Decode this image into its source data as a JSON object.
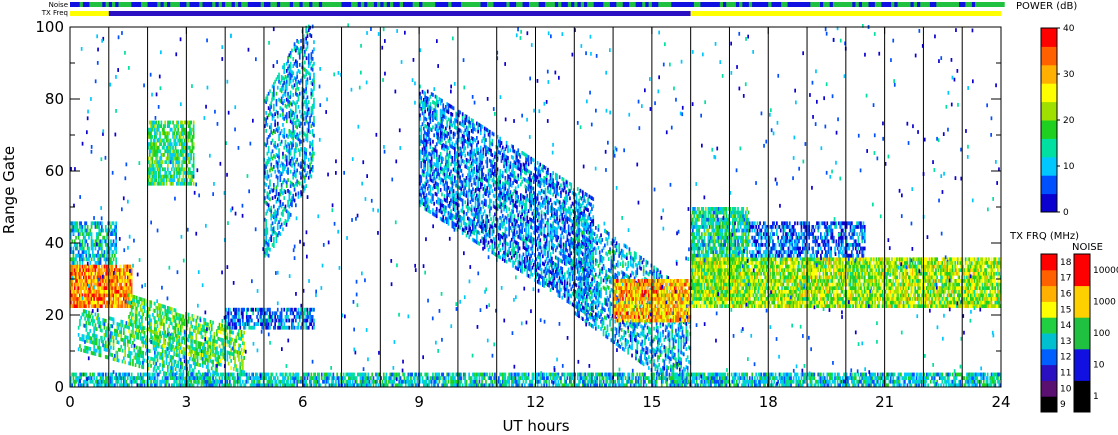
{
  "chart_data": {
    "type": "heatmap",
    "xlabel": "UT hours",
    "ylabel": "Range Gate",
    "xlim": [
      0,
      24
    ],
    "ylim": [
      0,
      100
    ],
    "x_ticks": [
      0,
      3,
      6,
      9,
      12,
      15,
      18,
      21,
      24
    ],
    "y_ticks": [
      0,
      20,
      40,
      60,
      80,
      100
    ],
    "hour_grid": [
      1,
      2,
      3,
      4,
      5,
      6,
      7,
      8,
      9,
      10,
      11,
      12,
      13,
      14,
      15,
      16,
      17,
      18,
      19,
      20,
      21,
      22,
      23
    ],
    "power_colorbar": {
      "title": "POWER (dB)",
      "ticks": [
        0,
        10,
        20,
        30,
        40
      ],
      "range": [
        0,
        40
      ],
      "colors": [
        "#0a00d0",
        "#0050ff",
        "#00c8ff",
        "#00e0a0",
        "#20d020",
        "#a0e000",
        "#ffff00",
        "#ffb000",
        "#ff6000",
        "#ff0000"
      ]
    },
    "txfreq_colorbar": {
      "title": "TX FRQ (MHz)",
      "ticks": [
        "9",
        "10",
        "11",
        "12",
        "13",
        "14",
        "15",
        "16",
        "17",
        "18"
      ],
      "colors": [
        "#000000",
        "#5a1070",
        "#2a10c0",
        "#0060ff",
        "#00c0d0",
        "#20d040",
        "#ffff00",
        "#ffb000",
        "#ff6000",
        "#ff0000"
      ]
    },
    "noise_colorbar": {
      "title": "NOISE",
      "ticks": [
        "1",
        "10",
        "100",
        "1000",
        "10000"
      ],
      "colors": [
        "#000000",
        "#1010e0",
        "#20c040",
        "#ffd000",
        "#ff0000"
      ]
    },
    "top_strips": {
      "noise_label": "Noise",
      "txfreq_label": "TX Freq",
      "noise_segments": [
        {
          "start": 0,
          "end": 3,
          "level": 0.5
        },
        {
          "start": 3,
          "end": 5,
          "level": 0.35
        },
        {
          "start": 5,
          "end": 9,
          "level": 0.6
        },
        {
          "start": 9,
          "end": 12,
          "level": 0.45
        },
        {
          "start": 12,
          "end": 16,
          "level": 0.55
        },
        {
          "start": 16,
          "end": 19,
          "level": 0.4
        },
        {
          "start": 19,
          "end": 24,
          "level": 0.6
        }
      ],
      "txfreq_segments": [
        {
          "start": 0,
          "end": 1,
          "freq": 15
        },
        {
          "start": 1,
          "end": 16,
          "freq": 11
        },
        {
          "start": 16,
          "end": 24,
          "freq": 15
        }
      ]
    },
    "echo_regions": [
      {
        "t0": 0.0,
        "t1": 1.6,
        "g0": 22,
        "g1": 34,
        "power": 32,
        "density": 0.9
      },
      {
        "t0": 0.0,
        "t1": 1.2,
        "g0": 34,
        "g1": 46,
        "power": 12,
        "density": 0.6
      },
      {
        "t0": 0.2,
        "t1": 3.8,
        "g0": 10,
        "g1": 22,
        "power": 14,
        "density": 0.5,
        "slope": -3.0
      },
      {
        "t0": 1.5,
        "t1": 4.5,
        "g0": 14,
        "g1": 26,
        "power": 18,
        "density": 0.55,
        "slope": -3.5
      },
      {
        "t0": 2.0,
        "t1": 3.2,
        "g0": 56,
        "g1": 74,
        "power": 16,
        "density": 0.7
      },
      {
        "t0": 4.0,
        "t1": 6.3,
        "g0": 16,
        "g1": 22,
        "power": 8,
        "density": 0.6
      },
      {
        "t0": 5.0,
        "t1": 6.3,
        "g0": 34,
        "g1": 80,
        "power": 10,
        "density": 0.45,
        "slope": 20
      },
      {
        "t0": 9.0,
        "t1": 13.5,
        "g0": 50,
        "g1": 84,
        "power": 8,
        "density": 0.55,
        "slope": -7
      },
      {
        "t0": 13.0,
        "t1": 16.0,
        "g0": 20,
        "g1": 50,
        "power": 10,
        "density": 0.45,
        "slope": -8
      },
      {
        "t0": 14.0,
        "t1": 16.0,
        "g0": 18,
        "g1": 30,
        "power": 30,
        "density": 0.85
      },
      {
        "t0": 16.0,
        "t1": 17.5,
        "g0": 24,
        "g1": 50,
        "power": 14,
        "density": 0.75
      },
      {
        "t0": 16.0,
        "t1": 24.0,
        "g0": 22,
        "g1": 36,
        "power": 22,
        "density": 0.85
      },
      {
        "t0": 17.5,
        "t1": 20.5,
        "g0": 36,
        "g1": 46,
        "power": 6,
        "density": 0.55
      },
      {
        "t0": 0.0,
        "t1": 24.0,
        "g0": 0,
        "g1": 4,
        "power": 12,
        "density": 0.7
      }
    ]
  }
}
